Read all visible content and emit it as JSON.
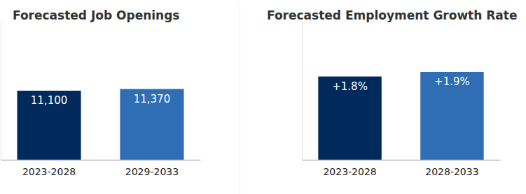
{
  "chart_data": [
    {
      "type": "bar",
      "title": "Forecasted Job Openings",
      "categories": [
        "2023-2028",
        "2029-2033"
      ],
      "values": [
        11100,
        11370
      ],
      "value_labels": [
        "11,100",
        "11,370"
      ],
      "colors": [
        "#002a5c",
        "#2f6db5"
      ],
      "ylim": [
        0,
        22300
      ],
      "yticks": [
        0
      ],
      "grid": false,
      "data_labels": true,
      "tick_labels": "x"
    },
    {
      "type": "bar",
      "title": "Forecasted Employment Growth Rate",
      "categories": [
        "2023-2028",
        "2028-2033"
      ],
      "values": [
        1.8,
        1.9
      ],
      "value_labels": [
        "+1.8%",
        "+1.9%"
      ],
      "colors": [
        "#002a5c",
        "#2f6db5"
      ],
      "ylim": [
        0,
        3
      ],
      "yticks": [
        0
      ],
      "grid": false,
      "data_labels": true,
      "tick_labels": "x"
    }
  ]
}
